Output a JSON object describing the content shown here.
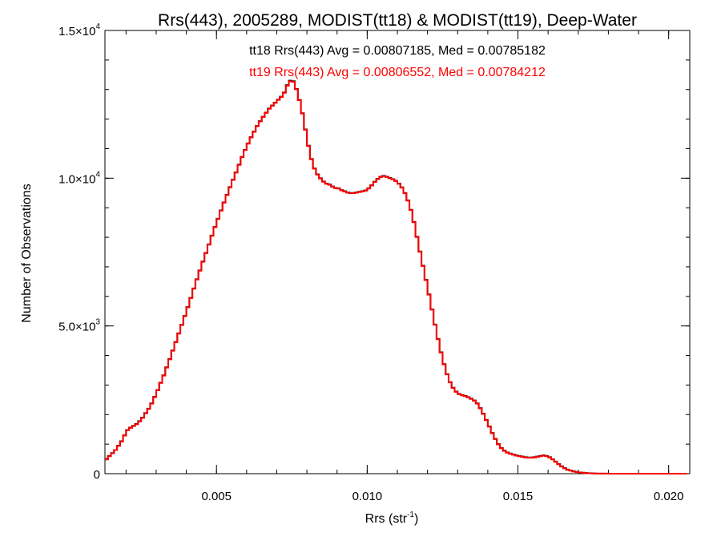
{
  "chart_data": {
    "type": "line",
    "step": true,
    "title": "Rrs(443), 2005289, MODIST(tt18) & MODIST(tt19), Deep-Water",
    "xlabel": {
      "base": "Rrs (str",
      "sup": "-1",
      "close": ")"
    },
    "ylabel": "Number of Observations",
    "xlim": [
      0.0013,
      0.0207
    ],
    "ylim": [
      0,
      15000
    ],
    "x_ticks": [
      {
        "value": 0.005,
        "label": "0.005"
      },
      {
        "value": 0.01,
        "label": "0.010"
      },
      {
        "value": 0.015,
        "label": "0.015"
      },
      {
        "value": 0.02,
        "label": "0.020"
      }
    ],
    "y_ticks": [
      {
        "value": 0,
        "mant": "0",
        "exp": ""
      },
      {
        "value": 5000,
        "mant": "5.0×10",
        "exp": "3"
      },
      {
        "value": 10000,
        "mant": "1.0×10",
        "exp": "4"
      },
      {
        "value": 15000,
        "mant": "1.5×10",
        "exp": "4"
      }
    ],
    "annotations": [
      {
        "text": "tt18 Rrs(443) Avg = 0.00807185, Med = 0.00785182",
        "color": "#000000"
      },
      {
        "text": "tt19 Rrs(443) Avg = 0.00806552, Med = 0.00784212",
        "color": "#ff0000"
      }
    ],
    "bin_width": 0.0001,
    "series": [
      {
        "name": "tt18",
        "color": "#000000",
        "x_start": 0.0013,
        "values": [
          500,
          600,
          700,
          800,
          950,
          1100,
          1300,
          1480,
          1560,
          1620,
          1680,
          1780,
          1900,
          2050,
          2200,
          2380,
          2600,
          2830,
          3080,
          3330,
          3600,
          3880,
          4170,
          4460,
          4750,
          5040,
          5340,
          5640,
          5950,
          6270,
          6580,
          6880,
          7180,
          7470,
          7760,
          8060,
          8350,
          8630,
          8910,
          9180,
          9440,
          9700,
          9950,
          10200,
          10460,
          10720,
          10960,
          11180,
          11390,
          11580,
          11770,
          11930,
          12080,
          12220,
          12360,
          12460,
          12560,
          12660,
          12760,
          12900,
          13150,
          13300,
          13280,
          13020,
          12650,
          12200,
          11650,
          11100,
          10650,
          10330,
          10130,
          10000,
          9890,
          9820,
          9790,
          9720,
          9670,
          9660,
          9600,
          9560,
          9520,
          9500,
          9500,
          9520,
          9540,
          9560,
          9590,
          9660,
          9760,
          9880,
          9980,
          10050,
          10080,
          10050,
          10010,
          9970,
          9910,
          9820,
          9690,
          9500,
          9250,
          8930,
          8520,
          8020,
          7520,
          7040,
          6560,
          6070,
          5560,
          5050,
          4560,
          4110,
          3710,
          3370,
          3100,
          2910,
          2780,
          2700,
          2660,
          2630,
          2590,
          2540,
          2480,
          2380,
          2220,
          2030,
          1820,
          1600,
          1380,
          1180,
          1000,
          870,
          780,
          720,
          680,
          650,
          620,
          600,
          580,
          560,
          550,
          550,
          560,
          580,
          600,
          620,
          600,
          560,
          490,
          410,
          330,
          250,
          190,
          140,
          110,
          80,
          60,
          45,
          35,
          25,
          18,
          12,
          8,
          5,
          4,
          3,
          2,
          1,
          1,
          0,
          0,
          0,
          0,
          0,
          0,
          0,
          0,
          0,
          0,
          0,
          0,
          0,
          0,
          0,
          0,
          0,
          0,
          0,
          0,
          0,
          0,
          0,
          0
        ]
      },
      {
        "name": "tt19",
        "color": "#ff0000",
        "x_start": 0.0013,
        "values": [
          480,
          590,
          690,
          800,
          940,
          1090,
          1290,
          1470,
          1550,
          1610,
          1670,
          1770,
          1890,
          2040,
          2190,
          2370,
          2590,
          2820,
          3070,
          3320,
          3590,
          3870,
          4160,
          4450,
          4740,
          5030,
          5330,
          5630,
          5940,
          6260,
          6570,
          6870,
          7170,
          7460,
          7750,
          8050,
          8340,
          8620,
          8900,
          9170,
          9430,
          9690,
          9940,
          10190,
          10450,
          10710,
          10950,
          11170,
          11380,
          11570,
          11760,
          11920,
          12070,
          12210,
          12350,
          12450,
          12550,
          12650,
          12750,
          12890,
          13130,
          13280,
          13260,
          13010,
          12640,
          12190,
          11640,
          11090,
          10640,
          10320,
          10120,
          9990,
          9880,
          9810,
          9780,
          9710,
          9660,
          9650,
          9590,
          9550,
          9510,
          9490,
          9490,
          9510,
          9530,
          9550,
          9580,
          9650,
          9750,
          9870,
          9970,
          10040,
          10070,
          10040,
          10000,
          9960,
          9900,
          9810,
          9680,
          9490,
          9240,
          8920,
          8510,
          8010,
          7510,
          7030,
          6550,
          6060,
          5550,
          5040,
          4550,
          4100,
          3700,
          3360,
          3090,
          2900,
          2770,
          2690,
          2650,
          2620,
          2580,
          2530,
          2470,
          2370,
          2210,
          2020,
          1810,
          1590,
          1370,
          1170,
          990,
          860,
          770,
          710,
          670,
          640,
          610,
          590,
          570,
          550,
          540,
          540,
          550,
          570,
          590,
          610,
          590,
          550,
          480,
          400,
          320,
          240,
          180,
          130,
          100,
          70,
          55,
          40,
          30,
          22,
          15,
          10,
          7,
          5,
          3,
          2,
          1,
          1,
          0,
          0,
          0,
          0,
          0,
          0,
          0,
          0,
          0,
          0,
          0,
          0,
          0,
          0,
          0,
          0,
          0,
          0,
          0,
          0,
          0,
          0,
          0,
          0,
          0
        ]
      }
    ]
  }
}
